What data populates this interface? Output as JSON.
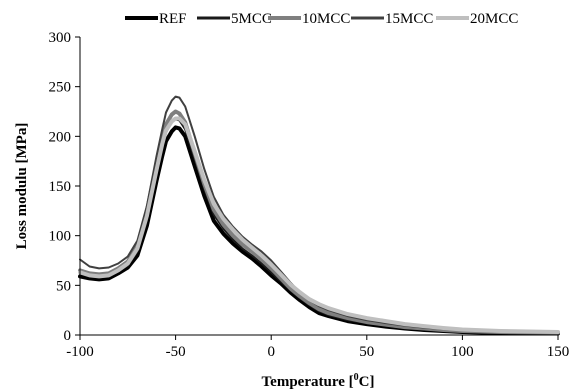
{
  "chart_data": {
    "type": "line",
    "title": "",
    "xlabel": "Temperature [",
    "xlabel_unit_sup": "0",
    "xlabel_unit_end": "C]",
    "ylabel": "Loss modulu [MPa]",
    "xlim": [
      -100,
      150
    ],
    "ylim": [
      0,
      300
    ],
    "x_ticks": [
      -100,
      -50,
      0,
      50,
      100,
      150
    ],
    "y_ticks": [
      0,
      50,
      100,
      150,
      200,
      250,
      300
    ],
    "grid": false,
    "legend_position": "top",
    "series": [
      {
        "name": "REF",
        "color": "#000000",
        "width": 4,
        "points": [
          [
            -100,
            59
          ],
          [
            -95,
            57
          ],
          [
            -90,
            56
          ],
          [
            -85,
            57
          ],
          [
            -80,
            62
          ],
          [
            -75,
            68
          ],
          [
            -70,
            80
          ],
          [
            -65,
            110
          ],
          [
            -60,
            155
          ],
          [
            -57,
            180
          ],
          [
            -55,
            195
          ],
          [
            -52,
            205
          ],
          [
            -50,
            209
          ],
          [
            -48,
            208
          ],
          [
            -45,
            200
          ],
          [
            -40,
            170
          ],
          [
            -35,
            140
          ],
          [
            -30,
            115
          ],
          [
            -25,
            102
          ],
          [
            -20,
            92
          ],
          [
            -15,
            84
          ],
          [
            -10,
            77
          ],
          [
            -5,
            69
          ],
          [
            0,
            60
          ],
          [
            5,
            52
          ],
          [
            10,
            43
          ],
          [
            15,
            35
          ],
          [
            20,
            28
          ],
          [
            25,
            22
          ],
          [
            30,
            19
          ],
          [
            40,
            14
          ],
          [
            50,
            11
          ],
          [
            60,
            8.5
          ],
          [
            70,
            6.5
          ],
          [
            80,
            5
          ],
          [
            90,
            4
          ],
          [
            100,
            3
          ],
          [
            120,
            2
          ],
          [
            150,
            1.5
          ]
        ]
      },
      {
        "name": "5MCC",
        "color": "#1a1a1a",
        "width": 2,
        "points": [
          [
            -100,
            62
          ],
          [
            -95,
            59
          ],
          [
            -90,
            58
          ],
          [
            -85,
            59
          ],
          [
            -80,
            64
          ],
          [
            -75,
            70
          ],
          [
            -70,
            84
          ],
          [
            -65,
            115
          ],
          [
            -60,
            162
          ],
          [
            -57,
            188
          ],
          [
            -55,
            204
          ],
          [
            -52,
            214
          ],
          [
            -50,
            217
          ],
          [
            -48,
            216
          ],
          [
            -45,
            207
          ],
          [
            -40,
            177
          ],
          [
            -35,
            147
          ],
          [
            -30,
            121
          ],
          [
            -25,
            107
          ],
          [
            -20,
            96
          ],
          [
            -15,
            87
          ],
          [
            -10,
            80
          ],
          [
            -5,
            72
          ],
          [
            0,
            63
          ],
          [
            5,
            54
          ],
          [
            10,
            45
          ],
          [
            15,
            37
          ],
          [
            20,
            30
          ],
          [
            25,
            24
          ],
          [
            30,
            20
          ],
          [
            40,
            15
          ],
          [
            50,
            12
          ],
          [
            60,
            9.5
          ],
          [
            70,
            7
          ],
          [
            80,
            5.5
          ],
          [
            90,
            4.5
          ],
          [
            100,
            3.5
          ],
          [
            120,
            2.5
          ],
          [
            150,
            2
          ]
        ]
      },
      {
        "name": "10MCC",
        "color": "#7f7f7f",
        "width": 4,
        "points": [
          [
            -100,
            65
          ],
          [
            -95,
            62
          ],
          [
            -90,
            61
          ],
          [
            -85,
            62
          ],
          [
            -80,
            67
          ],
          [
            -75,
            74
          ],
          [
            -70,
            90
          ],
          [
            -65,
            125
          ],
          [
            -60,
            172
          ],
          [
            -57,
            198
          ],
          [
            -55,
            212
          ],
          [
            -52,
            222
          ],
          [
            -50,
            225
          ],
          [
            -48,
            223
          ],
          [
            -45,
            214
          ],
          [
            -40,
            183
          ],
          [
            -35,
            152
          ],
          [
            -30,
            126
          ],
          [
            -25,
            111
          ],
          [
            -20,
            100
          ],
          [
            -15,
            91
          ],
          [
            -10,
            84
          ],
          [
            -5,
            76
          ],
          [
            0,
            67
          ],
          [
            5,
            57
          ],
          [
            10,
            47
          ],
          [
            15,
            39
          ],
          [
            20,
            32
          ],
          [
            25,
            26
          ],
          [
            30,
            22
          ],
          [
            40,
            17
          ],
          [
            50,
            13
          ],
          [
            60,
            10.5
          ],
          [
            70,
            8
          ],
          [
            80,
            6.5
          ],
          [
            90,
            5
          ],
          [
            100,
            4
          ],
          [
            120,
            3
          ],
          [
            150,
            2.5
          ]
        ]
      },
      {
        "name": "15MCC",
        "color": "#404040",
        "width": 2,
        "points": [
          [
            -100,
            76
          ],
          [
            -95,
            69
          ],
          [
            -90,
            67
          ],
          [
            -85,
            68
          ],
          [
            -80,
            72
          ],
          [
            -75,
            79
          ],
          [
            -70,
            95
          ],
          [
            -65,
            130
          ],
          [
            -60,
            180
          ],
          [
            -57,
            207
          ],
          [
            -55,
            224
          ],
          [
            -52,
            236
          ],
          [
            -50,
            240
          ],
          [
            -48,
            239
          ],
          [
            -45,
            230
          ],
          [
            -40,
            200
          ],
          [
            -35,
            167
          ],
          [
            -30,
            139
          ],
          [
            -25,
            121
          ],
          [
            -20,
            109
          ],
          [
            -15,
            99
          ],
          [
            -10,
            91
          ],
          [
            -5,
            84
          ],
          [
            0,
            75
          ],
          [
            5,
            64
          ],
          [
            10,
            53
          ],
          [
            15,
            43
          ],
          [
            20,
            35
          ],
          [
            25,
            29
          ],
          [
            30,
            25
          ],
          [
            40,
            19
          ],
          [
            50,
            15
          ],
          [
            60,
            12
          ],
          [
            70,
            9.5
          ],
          [
            80,
            7.5
          ],
          [
            90,
            6
          ],
          [
            100,
            5
          ],
          [
            120,
            3.5
          ],
          [
            150,
            3
          ]
        ]
      },
      {
        "name": "20MCC",
        "color": "#bfbfbf",
        "width": 4,
        "points": [
          [
            -100,
            63
          ],
          [
            -95,
            60
          ],
          [
            -90,
            59
          ],
          [
            -85,
            60
          ],
          [
            -80,
            65
          ],
          [
            -75,
            72
          ],
          [
            -70,
            87
          ],
          [
            -65,
            120
          ],
          [
            -60,
            166
          ],
          [
            -57,
            192
          ],
          [
            -55,
            206
          ],
          [
            -52,
            215
          ],
          [
            -50,
            218
          ],
          [
            -48,
            218
          ],
          [
            -45,
            212
          ],
          [
            -40,
            185
          ],
          [
            -35,
            156
          ],
          [
            -30,
            132
          ],
          [
            -25,
            117
          ],
          [
            -20,
            106
          ],
          [
            -15,
            96
          ],
          [
            -10,
            88
          ],
          [
            -5,
            80
          ],
          [
            0,
            71
          ],
          [
            5,
            61
          ],
          [
            10,
            51
          ],
          [
            15,
            43
          ],
          [
            20,
            36
          ],
          [
            25,
            31
          ],
          [
            30,
            27
          ],
          [
            40,
            21
          ],
          [
            50,
            17
          ],
          [
            60,
            14
          ],
          [
            70,
            11
          ],
          [
            80,
            9
          ],
          [
            90,
            7
          ],
          [
            100,
            5.5
          ],
          [
            120,
            4
          ],
          [
            150,
            3
          ]
        ]
      }
    ]
  }
}
